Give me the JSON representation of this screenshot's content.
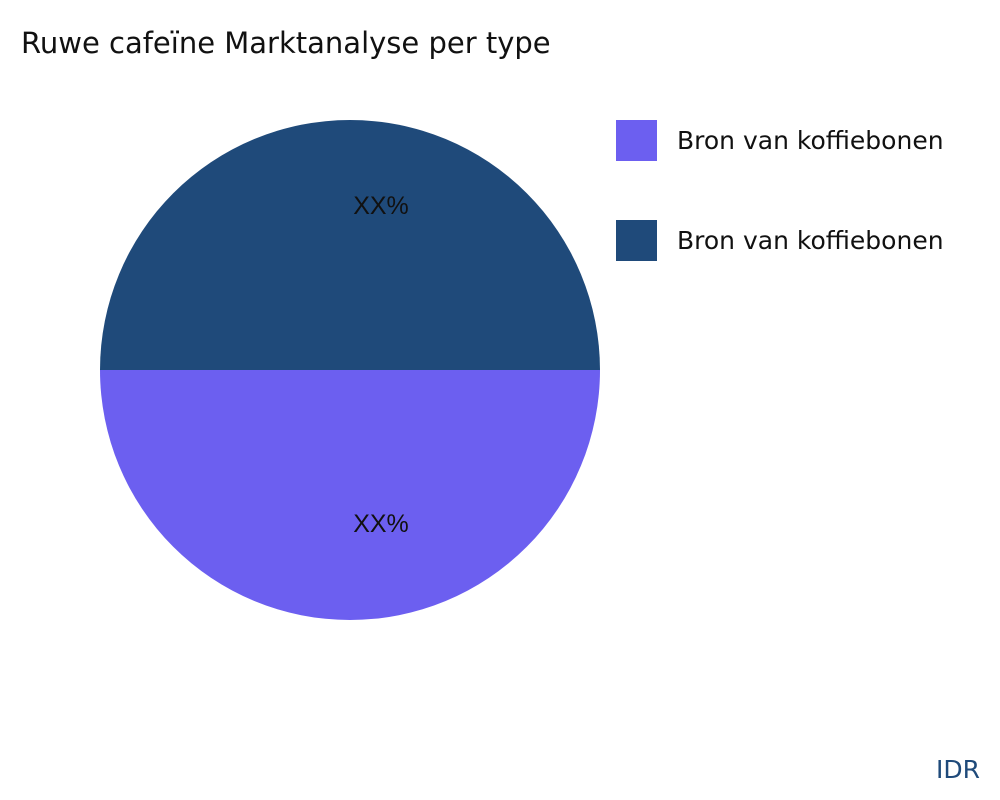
{
  "chart_data": {
    "type": "pie",
    "title": "Ruwe cafeïne Marktanalyse per type",
    "slices": [
      {
        "name": "Bron van koffiebonen",
        "value": 50,
        "label": "XX%",
        "color": "#6c5ff0"
      },
      {
        "name": "Bron van koffiebonen",
        "value": 50,
        "label": "XX%",
        "color": "#1f4a7a"
      }
    ],
    "legend_position": "right"
  },
  "brand": "IDR"
}
